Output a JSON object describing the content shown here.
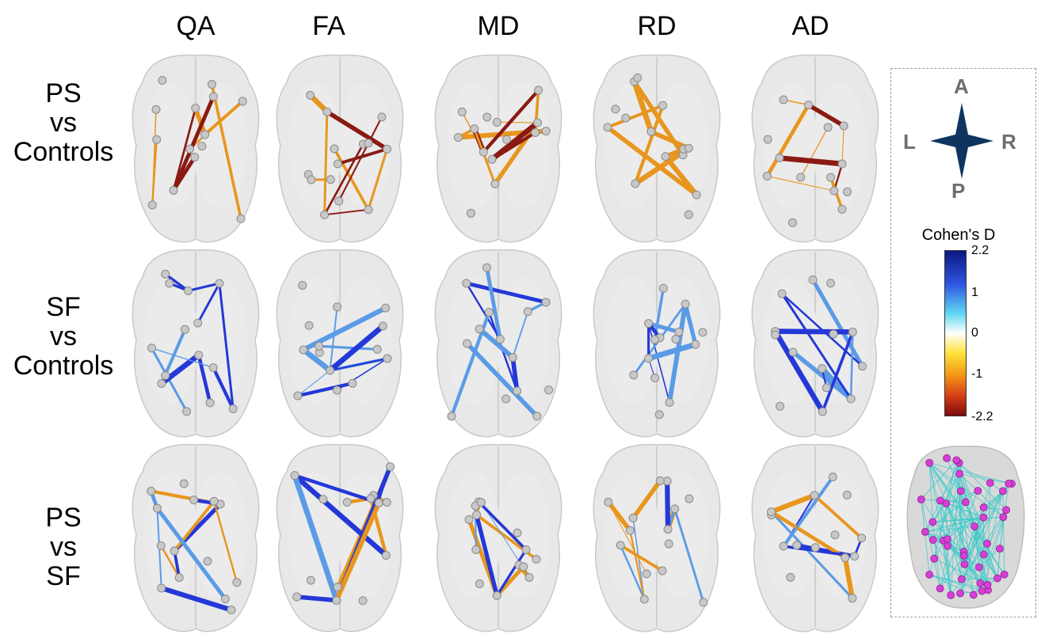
{
  "columns": [
    "QA",
    "FA",
    "MD",
    "RD",
    "AD"
  ],
  "rows": [
    {
      "l1": "PS",
      "l2": "vs",
      "l3": "Controls"
    },
    {
      "l1": "SF",
      "l2": "vs",
      "l3": "Controls"
    },
    {
      "l1": "PS",
      "l2": "vs",
      "l3": "SF"
    }
  ],
  "compass": {
    "anterior": "A",
    "posterior": "P",
    "left": "L",
    "right": "R"
  },
  "colorbar": {
    "title": "Cohen's D",
    "ticks": [
      "2.2",
      "1",
      "0",
      "-1",
      "-2.2"
    ],
    "colors": [
      "#0d1780",
      "#2d55e0",
      "#5fd8f2",
      "#ffffff",
      "#ffe23a",
      "#f39a16",
      "#d83d16",
      "#7a0c0c"
    ]
  },
  "icons": {
    "compass": "compass-rose-icon",
    "connectome": "brain-connectome-icon"
  },
  "edge_colors": {
    "positive": "#2438d8",
    "light_positive": "#5b9be6",
    "negative": "#e8961e",
    "dark_negative": "#8a1a12"
  },
  "node_color": "#c8c8c8",
  "connectome_node_color": "#d63fd6",
  "connectome_edge_color": "#3cc9c9"
}
